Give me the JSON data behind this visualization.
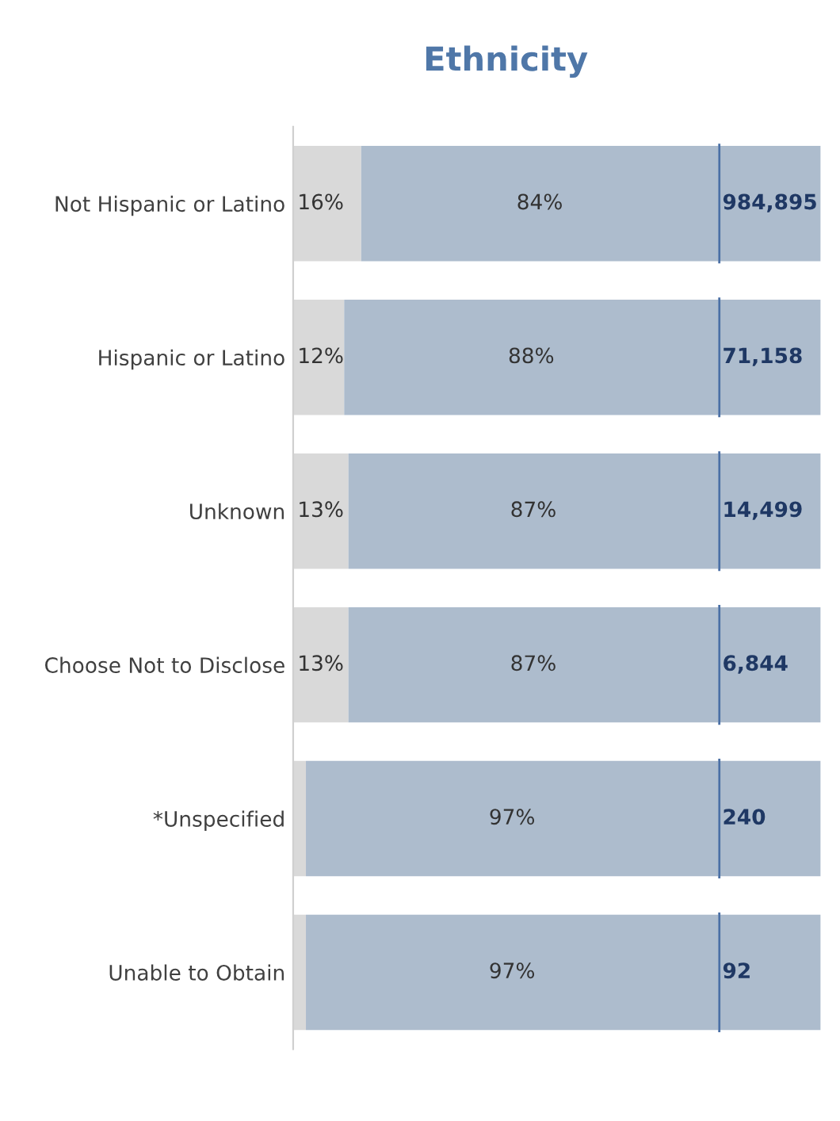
{
  "chart_data": [
    {
      "type": "bar",
      "title": "Ethnicity",
      "orientation": "horizontal",
      "stacked": true,
      "categories": [
        "Not Hispanic or Latino",
        "Hispanic or Latino",
        "Unknown",
        "Choose Not to Disclose",
        "*Unspecified",
        "Unable to Obtain"
      ],
      "series": [
        {
          "color": "#d9d9d9",
          "values": [
            16,
            12,
            13,
            13,
            3,
            3
          ],
          "value_labels": [
            "16%",
            "12%",
            "13%",
            "13%",
            null,
            null
          ]
        },
        {
          "color": "#adbccd",
          "values": [
            84,
            88,
            87,
            87,
            97,
            97
          ],
          "value_labels": [
            "84%",
            "88%",
            "87%",
            "87%",
            "97%",
            "97%"
          ]
        }
      ],
      "xlim": [
        0,
        100
      ],
      "tick_labels": "y",
      "grid": false,
      "legend": false
    },
    {
      "type": "other",
      "annotations": [
        "984,895",
        "71,158",
        "14,499",
        "6,844",
        "240",
        "92"
      ]
    }
  ]
}
